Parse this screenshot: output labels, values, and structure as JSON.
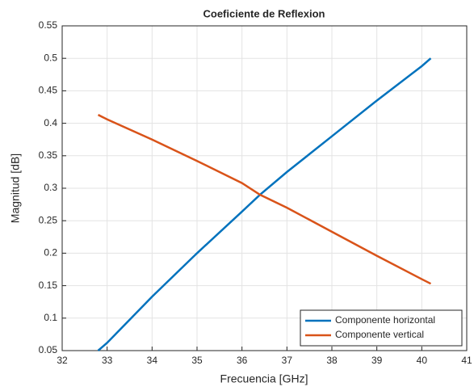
{
  "chart_data": {
    "type": "line",
    "title": "Coeficiente de Reflexion",
    "x_label": "Frecuencia [GHz]",
    "y_label": "Magnitud [dB]",
    "x": [
      32.8,
      33,
      34,
      35,
      36,
      36.4,
      37,
      38,
      39,
      40,
      40.2
    ],
    "series": [
      {
        "name": "Componente horizontal",
        "color": "#0072bd",
        "values": [
          0.05,
          0.062,
          0.133,
          0.2,
          0.264,
          0.29,
          0.325,
          0.38,
          0.435,
          0.488,
          0.5
        ]
      },
      {
        "name": "Componente vertical",
        "color": "#d95319",
        "values": [
          0.413,
          0.406,
          0.375,
          0.342,
          0.308,
          0.29,
          0.27,
          0.233,
          0.196,
          0.16,
          0.153
        ]
      }
    ],
    "xlim": [
      32,
      41
    ],
    "xticks": [
      32,
      33,
      34,
      35,
      36,
      37,
      38,
      39,
      40,
      41
    ],
    "ylim": [
      0.05,
      0.55
    ],
    "yticks": [
      0.05,
      0.1,
      0.15,
      0.2,
      0.25,
      0.3,
      0.35,
      0.4,
      0.45,
      0.5,
      0.55
    ],
    "grid": true,
    "legend": "lower right"
  }
}
